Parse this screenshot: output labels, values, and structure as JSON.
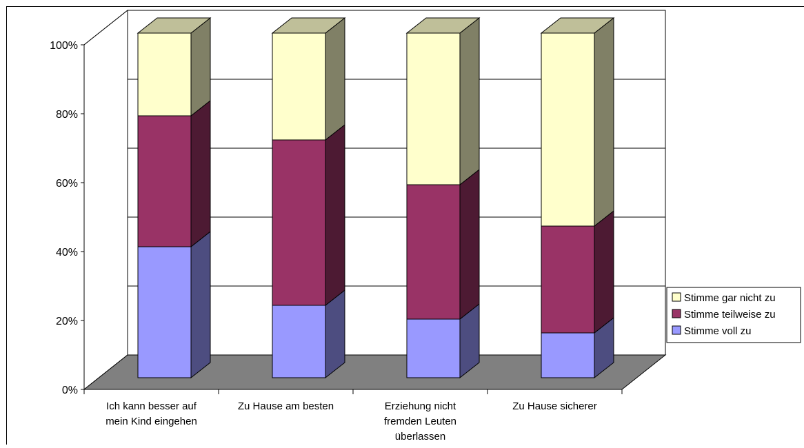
{
  "chart_data": {
    "type": "bar",
    "stacked": true,
    "percent_stacked": true,
    "three_d": true,
    "categories": [
      [
        "Ich kann besser auf",
        "mein Kind eingehen"
      ],
      [
        "Zu Hause am besten"
      ],
      [
        "Erziehung nicht",
        "fremden Leuten",
        "überlassen"
      ],
      [
        "Zu Hause sicherer"
      ]
    ],
    "series": [
      {
        "name": "Stimme voll zu",
        "values": [
          38,
          21,
          17,
          13
        ],
        "color": "#9999ff"
      },
      {
        "name": "Stimme teilweise zu",
        "values": [
          38,
          48,
          39,
          31
        ],
        "color": "#993366"
      },
      {
        "name": "Stimme gar nicht zu",
        "values": [
          24,
          31,
          44,
          56
        ],
        "color": "#ffffcc"
      }
    ],
    "y_ticks": [
      "0%",
      "20%",
      "40%",
      "60%",
      "80%",
      "100%"
    ],
    "ylim": [
      0,
      100
    ],
    "grid": true,
    "legend_placement": "right"
  }
}
